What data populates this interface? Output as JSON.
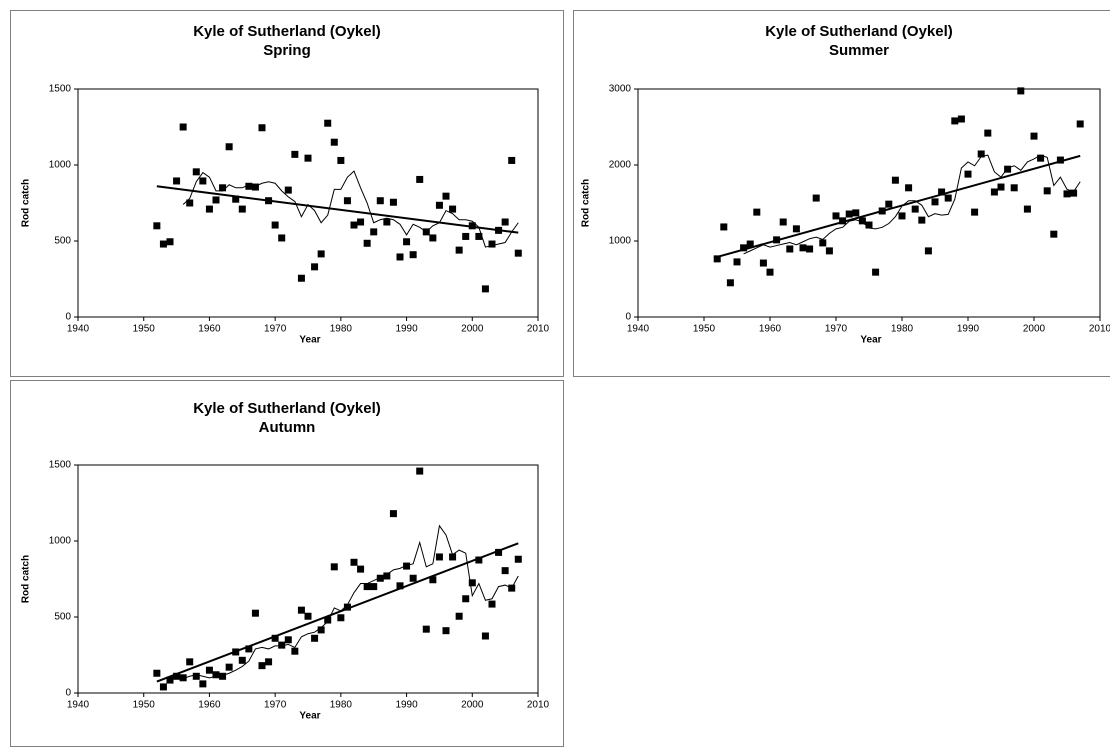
{
  "chart_data": [
    {
      "type": "scatter",
      "title": "Kyle of Sutherland (Oykel)",
      "subtitle": "Spring",
      "xlabel": "Year",
      "ylabel": "Rod catch",
      "x": [
        1952,
        1953,
        1954,
        1955,
        1956,
        1957,
        1958,
        1959,
        1960,
        1961,
        1962,
        1963,
        1964,
        1965,
        1966,
        1967,
        1968,
        1969,
        1970,
        1971,
        1972,
        1973,
        1974,
        1975,
        1976,
        1977,
        1978,
        1979,
        1980,
        1981,
        1982,
        1983,
        1984,
        1985,
        1986,
        1987,
        1988,
        1989,
        1990,
        1991,
        1992,
        1993,
        1994,
        1995,
        1996,
        1997,
        1998,
        1999,
        2000,
        2001,
        2002,
        2003,
        2004,
        2005,
        2006,
        2007
      ],
      "values": [
        600,
        480,
        495,
        895,
        1250,
        750,
        955,
        895,
        710,
        770,
        850,
        1120,
        775,
        710,
        860,
        855,
        1245,
        765,
        605,
        520,
        835,
        1070,
        255,
        1045,
        330,
        415,
        1275,
        1150,
        1030,
        765,
        605,
        625,
        485,
        560,
        765,
        625,
        755,
        395,
        495,
        410,
        905,
        560,
        520,
        735,
        795,
        710,
        440,
        530,
        600,
        530,
        185,
        480,
        570,
        625,
        1030,
        420
      ],
      "moving_average": [
        null,
        null,
        null,
        null,
        740,
        780,
        890,
        950,
        920,
        830,
        830,
        870,
        850,
        850,
        870,
        860,
        880,
        890,
        880,
        830,
        790,
        760,
        660,
        740,
        700,
        620,
        670,
        840,
        840,
        920,
        960,
        850,
        750,
        620,
        640,
        650,
        640,
        610,
        540,
        610,
        590,
        560,
        600,
        620,
        700,
        680,
        640,
        640,
        630,
        590,
        460,
        470,
        480,
        490,
        560,
        620
      ],
      "trend_x": [
        1952,
        2007
      ],
      "trend_values": [
        860,
        555
      ],
      "xlim": [
        1940,
        2010
      ],
      "xticks": [
        1940,
        1950,
        1960,
        1970,
        1980,
        1990,
        2000,
        2010
      ],
      "ylim": [
        0,
        1500
      ],
      "yticks": [
        0,
        500,
        1000,
        1500
      ],
      "color": "#000000"
    },
    {
      "type": "scatter",
      "title": "Kyle of Sutherland (Oykel)",
      "subtitle": "Summer",
      "xlabel": "Year",
      "ylabel": "Rod catch",
      "x": [
        1952,
        1953,
        1954,
        1955,
        1956,
        1957,
        1958,
        1959,
        1960,
        1961,
        1962,
        1963,
        1964,
        1965,
        1966,
        1967,
        1968,
        1969,
        1970,
        1971,
        1972,
        1973,
        1974,
        1975,
        1976,
        1977,
        1978,
        1979,
        1980,
        1981,
        1982,
        1983,
        1984,
        1985,
        1986,
        1987,
        1988,
        1989,
        1990,
        1991,
        1992,
        1993,
        1994,
        1995,
        1996,
        1997,
        1998,
        1999,
        2000,
        2001,
        2002,
        2003,
        2004,
        2005,
        2006,
        2007
      ],
      "values": [
        765,
        1185,
        450,
        725,
        910,
        960,
        1380,
        710,
        590,
        1015,
        1250,
        895,
        1160,
        910,
        895,
        1565,
        975,
        870,
        1330,
        1265,
        1355,
        1370,
        1265,
        1210,
        590,
        1395,
        1485,
        1800,
        1330,
        1700,
        1420,
        1275,
        870,
        1515,
        1645,
        1565,
        2580,
        2605,
        1880,
        1380,
        2145,
        2420,
        1645,
        1710,
        1945,
        1700,
        2975,
        1420,
        2380,
        2090,
        1660,
        1090,
        2065,
        1620,
        1630,
        2540
      ],
      "moving_average": [
        null,
        null,
        null,
        null,
        830,
        870,
        910,
        950,
        920,
        940,
        960,
        980,
        950,
        990,
        1030,
        1050,
        1020,
        1100,
        1160,
        1180,
        1260,
        1280,
        1250,
        1170,
        1160,
        1180,
        1230,
        1320,
        1460,
        1530,
        1530,
        1470,
        1320,
        1360,
        1340,
        1350,
        1550,
        1960,
        2040,
        1990,
        2110,
        2130,
        1910,
        1840,
        1960,
        1990,
        1930,
        2040,
        2080,
        2130,
        2100,
        1730,
        1840,
        1680,
        1650,
        1780
      ],
      "trend_x": [
        1952,
        2007
      ],
      "trend_values": [
        790,
        2120
      ],
      "xlim": [
        1940,
        2010
      ],
      "xticks": [
        1940,
        1950,
        1960,
        1970,
        1980,
        1990,
        2000,
        2010
      ],
      "ylim": [
        0,
        3000
      ],
      "yticks": [
        0,
        1000,
        2000,
        3000
      ],
      "color": "#000000"
    },
    {
      "type": "scatter",
      "title": "Kyle of Sutherland (Oykel)",
      "subtitle": "Autumn",
      "xlabel": "Year",
      "ylabel": "Rod catch",
      "x": [
        1952,
        1953,
        1954,
        1955,
        1956,
        1957,
        1958,
        1959,
        1960,
        1961,
        1962,
        1963,
        1964,
        1965,
        1966,
        1967,
        1968,
        1969,
        1970,
        1971,
        1972,
        1973,
        1974,
        1975,
        1976,
        1977,
        1978,
        1979,
        1980,
        1981,
        1982,
        1983,
        1984,
        1985,
        1986,
        1987,
        1988,
        1989,
        1990,
        1991,
        1992,
        1993,
        1994,
        1995,
        1996,
        1997,
        1998,
        1999,
        2000,
        2001,
        2002,
        2003,
        2004,
        2005,
        2006,
        2007
      ],
      "values": [
        130,
        40,
        85,
        110,
        100,
        205,
        110,
        60,
        150,
        120,
        110,
        170,
        270,
        215,
        290,
        525,
        180,
        205,
        360,
        315,
        350,
        275,
        545,
        505,
        360,
        415,
        480,
        830,
        495,
        565,
        860,
        815,
        700,
        700,
        755,
        770,
        1180,
        705,
        835,
        755,
        1460,
        420,
        745,
        895,
        410,
        895,
        505,
        620,
        725,
        875,
        375,
        585,
        925,
        805,
        690,
        880
      ],
      "moving_average": [
        null,
        null,
        null,
        null,
        95,
        110,
        120,
        110,
        100,
        110,
        115,
        130,
        150,
        175,
        210,
        290,
        300,
        290,
        310,
        310,
        320,
        300,
        370,
        390,
        400,
        430,
        470,
        560,
        540,
        580,
        660,
        720,
        720,
        740,
        760,
        780,
        810,
        820,
        840,
        850,
        990,
        830,
        850,
        1100,
        1040,
        910,
        940,
        920,
        640,
        720,
        610,
        620,
        700,
        710,
        690,
        770
      ],
      "trend_x": [
        1952,
        2007
      ],
      "trend_values": [
        75,
        985
      ],
      "xlim": [
        1940,
        2010
      ],
      "xticks": [
        1940,
        1950,
        1960,
        1970,
        1980,
        1990,
        2000,
        2010
      ],
      "ylim": [
        0,
        1500
      ],
      "yticks": [
        0,
        500,
        1000,
        1500
      ],
      "color": "#000000"
    }
  ]
}
